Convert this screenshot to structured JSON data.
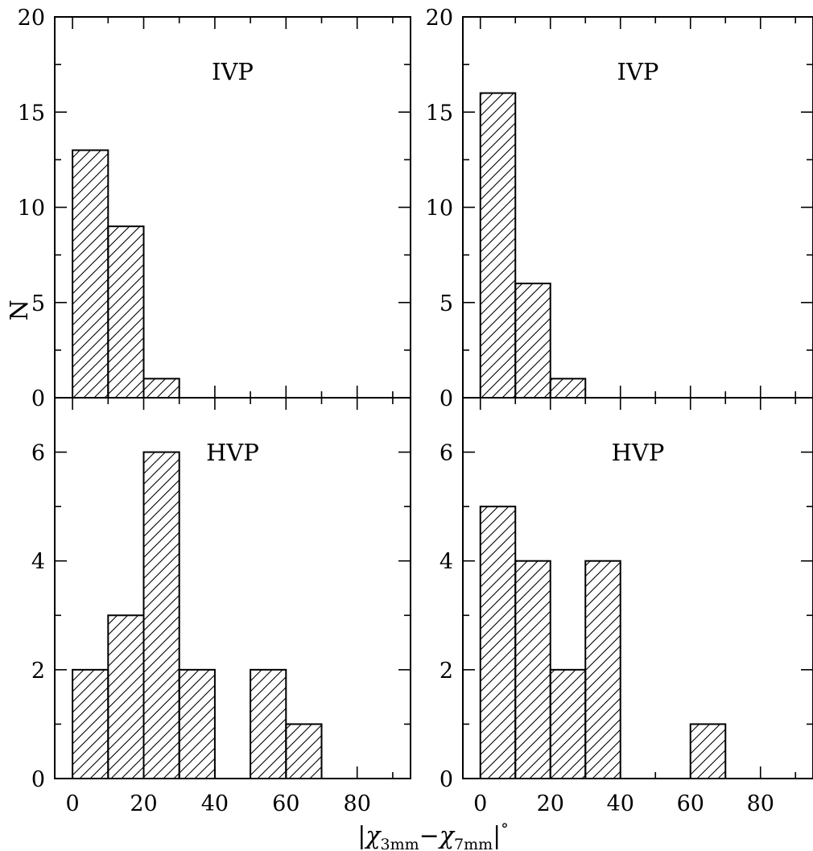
{
  "chart_data": [
    {
      "type": "bar",
      "panel": "top-left",
      "label": "IVP",
      "bins": [
        [
          0,
          10
        ],
        [
          10,
          20
        ],
        [
          20,
          30
        ],
        [
          30,
          40
        ],
        [
          40,
          50
        ],
        [
          50,
          60
        ],
        [
          60,
          70
        ],
        [
          70,
          80
        ],
        [
          80,
          90
        ]
      ],
      "values": [
        13,
        9,
        1,
        0,
        0,
        0,
        0,
        0,
        0
      ],
      "ylabel": "N",
      "xlim": [
        -5,
        95
      ],
      "ylim": [
        0,
        20
      ],
      "yticks": [
        0,
        5,
        10,
        15,
        20
      ],
      "yticklabels": [
        "0",
        "5",
        "10",
        "15",
        "20"
      ],
      "fill": "hatched"
    },
    {
      "type": "bar",
      "panel": "top-right",
      "label": "IVP",
      "bins": [
        [
          0,
          10
        ],
        [
          10,
          20
        ],
        [
          20,
          30
        ],
        [
          30,
          40
        ],
        [
          40,
          50
        ],
        [
          50,
          60
        ],
        [
          60,
          70
        ],
        [
          70,
          80
        ],
        [
          80,
          90
        ]
      ],
      "values": [
        16,
        6,
        1,
        0,
        0,
        0,
        0,
        0,
        0
      ],
      "xlim": [
        -5,
        95
      ],
      "ylim": [
        0,
        20
      ],
      "yticks": [
        0,
        5,
        10,
        15,
        20
      ],
      "yticklabels": [
        "0",
        "5",
        "10",
        "15",
        "20"
      ],
      "fill": "hatched"
    },
    {
      "type": "bar",
      "panel": "bottom-left",
      "label": "HVP",
      "bins": [
        [
          0,
          10
        ],
        [
          10,
          20
        ],
        [
          20,
          30
        ],
        [
          30,
          40
        ],
        [
          40,
          50
        ],
        [
          50,
          60
        ],
        [
          60,
          70
        ],
        [
          70,
          80
        ],
        [
          80,
          90
        ]
      ],
      "values": [
        2,
        3,
        6,
        2,
        0,
        2,
        1,
        0,
        0
      ],
      "xlim": [
        -5,
        95
      ],
      "ylim": [
        0,
        7
      ],
      "yticks": [
        0,
        2,
        4,
        6
      ],
      "yticklabels": [
        "0",
        "2",
        "4",
        "6"
      ],
      "xticks": [
        0,
        20,
        40,
        60,
        80
      ],
      "xticklabels": [
        "0",
        "20",
        "40",
        "60",
        "80"
      ],
      "fill": "hatched"
    },
    {
      "type": "bar",
      "panel": "bottom-right",
      "label": "HVP",
      "bins": [
        [
          0,
          10
        ],
        [
          10,
          20
        ],
        [
          20,
          30
        ],
        [
          30,
          40
        ],
        [
          40,
          50
        ],
        [
          50,
          60
        ],
        [
          60,
          70
        ],
        [
          70,
          80
        ],
        [
          80,
          90
        ]
      ],
      "values": [
        5,
        4,
        2,
        4,
        0,
        0,
        1,
        0,
        0
      ],
      "xlim": [
        -5,
        95
      ],
      "ylim": [
        0,
        7
      ],
      "yticks": [
        0,
        2,
        4,
        6
      ],
      "yticklabels": [
        "0",
        "2",
        "4",
        "6"
      ],
      "xticks": [
        0,
        20,
        40,
        60,
        80
      ],
      "xticklabels": [
        "0",
        "20",
        "40",
        "60",
        "80"
      ],
      "fill": "hatched"
    }
  ],
  "xlabel_parts": {
    "bar": "|",
    "chi1": "χ",
    "sub1": "3mm",
    "minus": "−",
    "chi2": "χ",
    "sub2": "7mm",
    "bar_end": "|",
    "degree": "°"
  }
}
